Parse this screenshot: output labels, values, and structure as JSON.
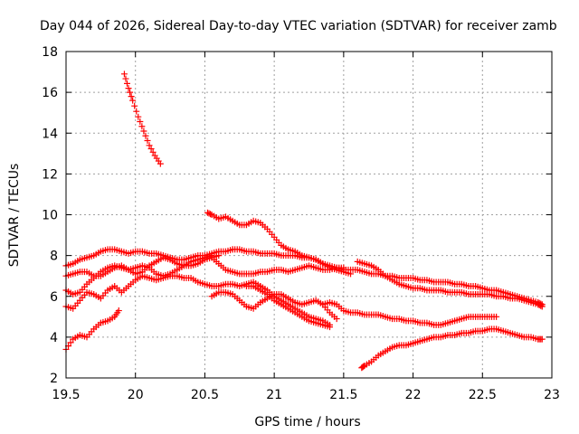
{
  "chart_data": {
    "type": "scatter",
    "title": "Day 044 of 2026, Sidereal Day-to-day VTEC variation (SDTVAR) for receiver zamb",
    "xlabel": "GPS time / hours",
    "ylabel": "SDTVAR / TECUs",
    "xlim": [
      19.5,
      23
    ],
    "ylim": [
      2,
      18
    ],
    "xticks": [
      19.5,
      20,
      20.5,
      21,
      21.5,
      22,
      22.5,
      23
    ],
    "xtick_labels": [
      "19.5",
      "20",
      "20.5",
      "21",
      "21.5",
      "22",
      "22.5",
      "23"
    ],
    "yticks": [
      2,
      4,
      6,
      8,
      10,
      12,
      14,
      16,
      18
    ],
    "ytick_labels": [
      "2",
      "4",
      "6",
      "8",
      "10",
      "12",
      "14",
      "16",
      "18"
    ],
    "grid": true,
    "marker": "+",
    "color": "#ff0000",
    "series": [
      {
        "name": "arc-1",
        "x": [
          19.92,
          19.95,
          19.98,
          20.02,
          20.06,
          20.1,
          20.14,
          20.18
        ],
        "y": [
          16.9,
          16.2,
          15.6,
          14.8,
          14.1,
          13.4,
          12.9,
          12.5
        ]
      },
      {
        "name": "arc-2",
        "x": [
          19.5,
          19.55,
          19.6,
          19.65,
          19.7,
          19.75,
          19.8,
          19.85,
          19.88
        ],
        "y": [
          3.4,
          3.9,
          4.1,
          4.0,
          4.4,
          4.7,
          4.8,
          5.0,
          5.3
        ]
      },
      {
        "name": "arc-3",
        "x": [
          19.5,
          19.55,
          19.6,
          19.65,
          19.7,
          19.75,
          19.8,
          19.85,
          19.9,
          19.95,
          20.0,
          20.05,
          20.1,
          20.15,
          20.2,
          20.25,
          20.3,
          20.35,
          20.4,
          20.45,
          20.5,
          20.55,
          20.6,
          20.65,
          20.7
        ],
        "y": [
          7.5,
          7.6,
          7.8,
          7.9,
          8.0,
          8.2,
          8.3,
          8.3,
          8.2,
          8.1,
          8.2,
          8.2,
          8.1,
          8.1,
          8.0,
          7.9,
          7.8,
          7.8,
          7.9,
          8.0,
          8.0,
          8.1,
          8.2,
          8.2,
          8.3
        ]
      },
      {
        "name": "arc-4",
        "x": [
          19.5,
          19.55,
          19.6,
          19.65,
          19.7,
          19.75,
          19.8,
          19.85,
          19.9,
          19.95,
          20.0,
          20.05,
          20.1,
          20.15,
          20.2,
          20.25,
          20.3,
          20.35,
          20.4,
          20.45,
          20.5,
          20.55,
          20.6
        ],
        "y": [
          7.0,
          7.1,
          7.2,
          7.2,
          7.0,
          7.0,
          7.2,
          7.4,
          7.5,
          7.3,
          7.1,
          7.2,
          7.5,
          7.7,
          7.9,
          7.8,
          7.6,
          7.5,
          7.5,
          7.6,
          7.8,
          7.9,
          8.0
        ]
      },
      {
        "name": "arc-5",
        "x": [
          19.5,
          19.55,
          19.6,
          19.65,
          19.7,
          19.75,
          19.8,
          19.85,
          19.9,
          19.95,
          20.0,
          20.05,
          20.1,
          20.15,
          20.2,
          20.25,
          20.3,
          20.35,
          20.4,
          20.45,
          20.5,
          20.55
        ],
        "y": [
          6.3,
          6.1,
          6.2,
          6.6,
          6.9,
          7.2,
          7.4,
          7.5,
          7.4,
          7.3,
          7.4,
          7.5,
          7.4,
          7.1,
          7.0,
          7.1,
          7.3,
          7.5,
          7.7,
          7.8,
          7.9,
          8.0
        ]
      },
      {
        "name": "arc-6",
        "x": [
          19.5,
          19.55,
          19.6,
          19.65,
          19.7,
          19.75,
          19.8,
          19.85,
          19.9,
          19.95,
          20.0,
          20.05,
          20.1,
          20.15,
          20.2,
          20.25,
          20.3,
          20.35,
          20.4,
          20.45,
          20.5,
          20.55,
          20.6,
          20.65,
          20.7,
          20.75,
          20.8,
          20.85,
          20.9
        ],
        "y": [
          5.5,
          5.4,
          5.8,
          6.2,
          6.1,
          5.9,
          6.3,
          6.5,
          6.2,
          6.5,
          6.8,
          7.0,
          6.9,
          6.8,
          6.9,
          7.0,
          7.0,
          6.9,
          6.9,
          6.7,
          6.6,
          6.5,
          6.5,
          6.6,
          6.6,
          6.5,
          6.6,
          6.7,
          6.5
        ]
      },
      {
        "name": "arc-7",
        "x": [
          20.52,
          20.55,
          20.6,
          20.65,
          20.7,
          20.75,
          20.8,
          20.85,
          20.9,
          20.95,
          21.0,
          21.05,
          21.1,
          21.15,
          21.2,
          21.25,
          21.3,
          21.35,
          21.4,
          21.45,
          21.5,
          21.55
        ],
        "y": [
          10.1,
          10.0,
          9.8,
          9.9,
          9.7,
          9.5,
          9.5,
          9.7,
          9.6,
          9.3,
          8.9,
          8.5,
          8.3,
          8.2,
          8.0,
          7.9,
          7.8,
          7.6,
          7.4,
          7.3,
          7.2,
          7.1
        ]
      },
      {
        "name": "arc-8",
        "x": [
          20.7,
          20.75,
          20.8,
          20.85,
          20.9,
          20.95,
          21.0,
          21.05,
          21.1,
          21.15,
          21.2,
          21.25,
          21.3,
          21.35,
          21.4,
          21.45,
          21.5,
          21.55,
          21.6,
          21.65,
          21.7,
          21.75,
          21.8,
          21.85,
          21.9,
          21.95,
          22.0,
          22.05,
          22.1,
          22.15,
          22.2,
          22.25,
          22.3,
          22.35,
          22.4,
          22.45,
          22.5,
          22.55,
          22.6,
          22.65,
          22.7,
          22.75,
          22.8,
          22.85,
          22.9,
          22.93
        ],
        "y": [
          8.3,
          8.3,
          8.2,
          8.2,
          8.1,
          8.1,
          8.1,
          8.0,
          8.0,
          8.0,
          7.9,
          7.9,
          7.8,
          7.6,
          7.5,
          7.4,
          7.3,
          7.3,
          7.3,
          7.2,
          7.1,
          7.1,
          7.0,
          7.0,
          6.9,
          6.9,
          6.9,
          6.8,
          6.8,
          6.7,
          6.7,
          6.7,
          6.6,
          6.6,
          6.5,
          6.5,
          6.4,
          6.3,
          6.3,
          6.2,
          6.1,
          6.0,
          5.9,
          5.8,
          5.7,
          5.6
        ]
      },
      {
        "name": "arc-9",
        "x": [
          20.55,
          20.6,
          20.65,
          20.7,
          20.75,
          20.8,
          20.85,
          20.9,
          20.95,
          21.0,
          21.05,
          21.1,
          21.15,
          21.2,
          21.25,
          21.3,
          21.35,
          21.4,
          21.45,
          21.5
        ],
        "y": [
          7.9,
          7.6,
          7.3,
          7.2,
          7.1,
          7.1,
          7.1,
          7.2,
          7.2,
          7.3,
          7.3,
          7.2,
          7.3,
          7.4,
          7.5,
          7.4,
          7.3,
          7.3,
          7.4,
          7.4
        ]
      },
      {
        "name": "arc-10",
        "x": [
          21.6,
          21.65,
          21.7,
          21.75,
          21.8,
          21.85,
          21.9,
          21.95,
          22.0,
          22.05,
          22.1,
          22.15,
          22.2,
          22.25,
          22.3,
          22.35,
          22.4,
          22.45,
          22.5,
          22.55,
          22.6,
          22.65,
          22.7,
          22.75,
          22.8,
          22.85,
          22.9,
          22.93
        ],
        "y": [
          7.7,
          7.6,
          7.5,
          7.3,
          7.0,
          6.8,
          6.6,
          6.5,
          6.4,
          6.4,
          6.3,
          6.3,
          6.3,
          6.2,
          6.2,
          6.2,
          6.1,
          6.1,
          6.1,
          6.1,
          6.0,
          6.0,
          5.9,
          5.9,
          5.8,
          5.7,
          5.6,
          5.5
        ]
      },
      {
        "name": "arc-11",
        "x": [
          20.55,
          20.6,
          20.65,
          20.7,
          20.75,
          20.8,
          20.85,
          20.9,
          20.95,
          21.0,
          21.05,
          21.1,
          21.15,
          21.2,
          21.25,
          21.3,
          21.35,
          21.4,
          21.45
        ],
        "y": [
          6.0,
          6.2,
          6.2,
          6.1,
          5.8,
          5.5,
          5.4,
          5.7,
          5.9,
          6.1,
          6.1,
          5.9,
          5.7,
          5.6,
          5.7,
          5.8,
          5.6,
          5.2,
          4.9
        ]
      },
      {
        "name": "arc-12",
        "x": [
          20.8,
          20.85,
          20.9,
          20.95,
          21.0,
          21.05,
          21.1,
          21.15,
          21.2,
          21.25,
          21.3,
          21.35,
          21.4
        ],
        "y": [
          6.5,
          6.5,
          6.3,
          6.1,
          5.8,
          5.6,
          5.4,
          5.2,
          5.0,
          4.8,
          4.7,
          4.6,
          4.5
        ]
      },
      {
        "name": "arc-13",
        "x": [
          20.9,
          20.95,
          21.0,
          21.05,
          21.1,
          21.15,
          21.2,
          21.25,
          21.3,
          21.35,
          21.4
        ],
        "y": [
          6.5,
          6.3,
          6.0,
          5.8,
          5.6,
          5.4,
          5.2,
          5.0,
          4.9,
          4.8,
          4.6
        ]
      },
      {
        "name": "arc-14",
        "x": [
          21.35,
          21.4,
          21.45,
          21.5,
          21.55,
          21.6,
          21.65,
          21.7,
          21.75,
          21.8,
          21.85,
          21.9,
          21.95,
          22.0,
          22.05,
          22.1,
          22.15,
          22.2,
          22.25,
          22.3,
          22.35,
          22.4,
          22.45,
          22.5,
          22.55,
          22.6
        ],
        "y": [
          5.6,
          5.7,
          5.6,
          5.3,
          5.2,
          5.2,
          5.1,
          5.1,
          5.1,
          5.0,
          4.9,
          4.9,
          4.8,
          4.8,
          4.7,
          4.7,
          4.6,
          4.6,
          4.7,
          4.8,
          4.9,
          5.0,
          5.0,
          5.0,
          5.0,
          5.0
        ]
      },
      {
        "name": "arc-15",
        "x": [
          21.63,
          21.65,
          21.7,
          21.75,
          21.8,
          21.85,
          21.9,
          21.95,
          22.0,
          22.05,
          22.1,
          22.15,
          22.2,
          22.25,
          22.3,
          22.35,
          22.4,
          22.45,
          22.5,
          22.55,
          22.6,
          22.65,
          22.7,
          22.75,
          22.8,
          22.85,
          22.9,
          22.93
        ],
        "y": [
          2.5,
          2.6,
          2.8,
          3.1,
          3.3,
          3.5,
          3.6,
          3.6,
          3.7,
          3.8,
          3.9,
          4.0,
          4.0,
          4.1,
          4.1,
          4.2,
          4.2,
          4.3,
          4.3,
          4.4,
          4.4,
          4.3,
          4.2,
          4.1,
          4.0,
          4.0,
          3.9,
          3.9
        ]
      }
    ]
  }
}
